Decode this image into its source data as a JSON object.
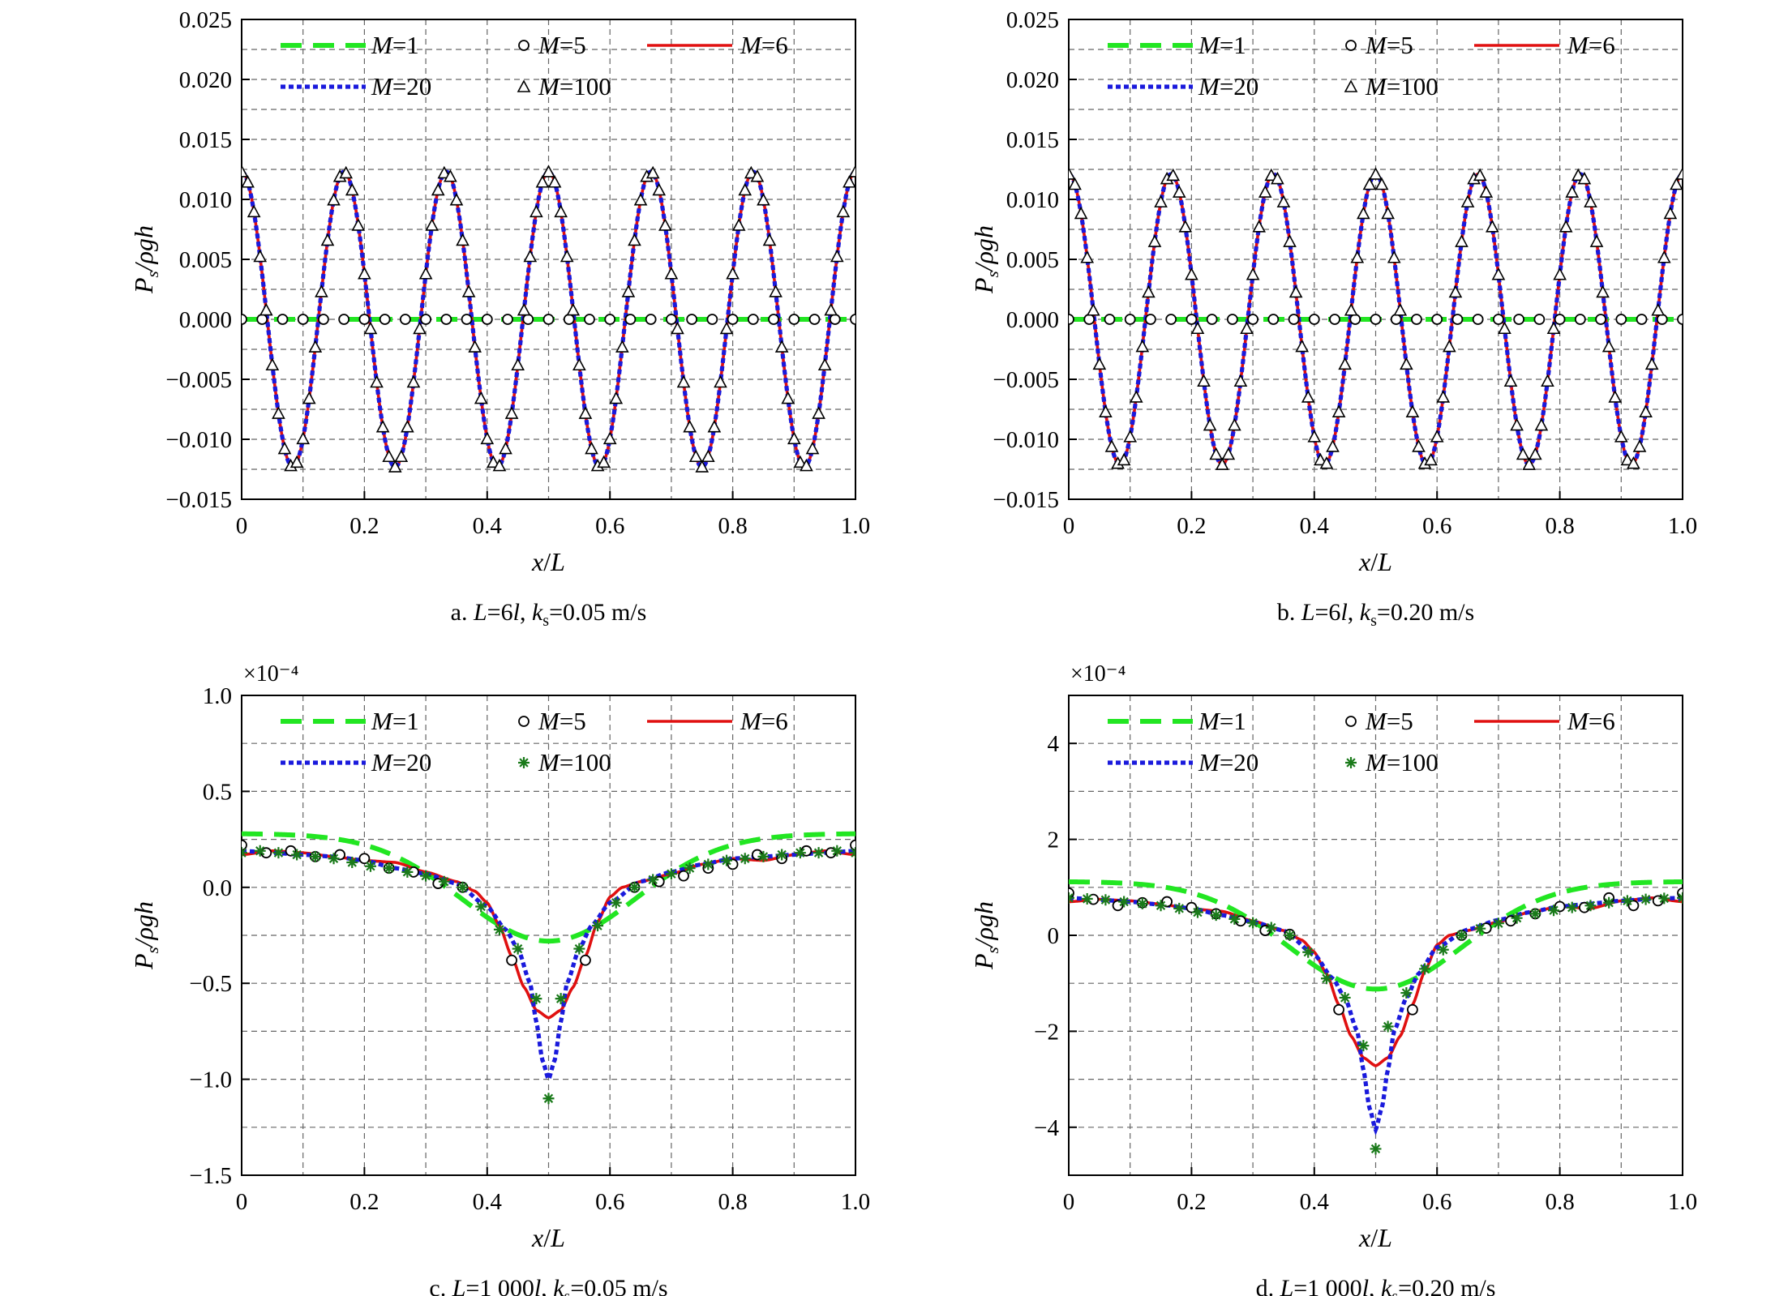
{
  "chart_data": [
    {
      "panel_id": "a",
      "type": "line",
      "caption": {
        "prefix": "a. ",
        "L": "L",
        "eq1": "=6",
        "l": "l",
        "comma": ", ",
        "k": "k",
        "sub": "s",
        "eq2": "=0.05 m/s"
      },
      "xlabel": {
        "a": "x",
        "slash": "/",
        "b": "L"
      },
      "ylabel": {
        "p": "P",
        "sub": "s",
        "rest": "/ρgh"
      },
      "xlim": [
        0,
        1.0
      ],
      "ylim": [
        -0.015,
        0.025
      ],
      "xticks": [
        0,
        0.2,
        0.4,
        0.6,
        0.8,
        1.0
      ],
      "xtick_labels": [
        "0",
        "0.2",
        "0.4",
        "0.6",
        "0.8",
        "1.0"
      ],
      "yticks": [
        -0.015,
        -0.01,
        -0.005,
        0.0,
        0.005,
        0.01,
        0.015,
        0.02,
        0.025
      ],
      "ytick_labels": [
        "−0.015",
        "−0.010",
        "−0.005",
        "0.000",
        "0.005",
        "0.010",
        "0.015",
        "0.020",
        "0.025"
      ],
      "scale_note": "",
      "grid": true,
      "legend": {
        "location": "top",
        "entries": [
          {
            "series": "M=1",
            "letter": "M",
            "rest": "=1"
          },
          {
            "series": "M=5",
            "letter": "M",
            "rest": "=5"
          },
          {
            "series": "M=6",
            "letter": "M",
            "rest": "=6"
          },
          {
            "series": "M=20",
            "letter": "M",
            "rest": "=20"
          },
          {
            "series": "M=100",
            "letter": "M",
            "rest": "=100"
          }
        ]
      },
      "series": [
        {
          "name": "M=1",
          "style": "dashed",
          "color": "#22e622",
          "function": "cos",
          "amplitude": 0.0,
          "offset": 0.0,
          "cycles": 6
        },
        {
          "name": "M=5",
          "style": "circle-markers",
          "color": "#000000",
          "function": "cos",
          "amplitude": 0.0,
          "offset": 0.0,
          "cycles": 6,
          "marker_count": 31
        },
        {
          "name": "M=6",
          "style": "solid",
          "color": "#e01010",
          "function": "cos",
          "amplitude": 0.0123,
          "offset": 0.0,
          "cycles": 6
        },
        {
          "name": "M=20",
          "style": "dotted",
          "color": "#1a1adc",
          "function": "cos",
          "amplitude": 0.0123,
          "offset": 0.0,
          "cycles": 6
        },
        {
          "name": "M=100",
          "style": "triangle-markers",
          "color": "#000000",
          "function": "cos",
          "amplitude": 0.0123,
          "offset": 0.0,
          "cycles": 6,
          "marker_count": 101
        }
      ]
    },
    {
      "panel_id": "b",
      "type": "line",
      "caption": {
        "prefix": "b. ",
        "L": "L",
        "eq1": "=6",
        "l": "l",
        "comma": ", ",
        "k": "k",
        "sub": "s",
        "eq2": "=0.20 m/s"
      },
      "xlabel": {
        "a": "x",
        "slash": "/",
        "b": "L"
      },
      "ylabel": {
        "p": "P",
        "sub": "s",
        "rest": "/ρgh"
      },
      "xlim": [
        0,
        1.0
      ],
      "ylim": [
        -0.015,
        0.025
      ],
      "xticks": [
        0,
        0.2,
        0.4,
        0.6,
        0.8,
        1.0
      ],
      "xtick_labels": [
        "0",
        "0.2",
        "0.4",
        "0.6",
        "0.8",
        "1.0"
      ],
      "yticks": [
        -0.015,
        -0.01,
        -0.005,
        0.0,
        0.005,
        0.01,
        0.015,
        0.02,
        0.025
      ],
      "ytick_labels": [
        "−0.015",
        "−0.010",
        "−0.005",
        "0.000",
        "0.005",
        "0.010",
        "0.015",
        "0.020",
        "0.025"
      ],
      "scale_note": "",
      "grid": true,
      "legend": {
        "location": "top",
        "entries": [
          {
            "series": "M=1",
            "letter": "M",
            "rest": "=1"
          },
          {
            "series": "M=5",
            "letter": "M",
            "rest": "=5"
          },
          {
            "series": "M=6",
            "letter": "M",
            "rest": "=6"
          },
          {
            "series": "M=20",
            "letter": "M",
            "rest": "=20"
          },
          {
            "series": "M=100",
            "letter": "M",
            "rest": "=100"
          }
        ]
      },
      "series": [
        {
          "name": "M=1",
          "style": "dashed",
          "color": "#22e622",
          "function": "cos",
          "amplitude": 0.0,
          "offset": 0.0,
          "cycles": 6
        },
        {
          "name": "M=5",
          "style": "circle-markers",
          "color": "#000000",
          "function": "cos",
          "amplitude": 0.0,
          "offset": 0.0,
          "cycles": 6,
          "marker_count": 31
        },
        {
          "name": "M=6",
          "style": "solid",
          "color": "#e01010",
          "function": "cos",
          "amplitude": 0.0121,
          "offset": 0.0,
          "cycles": 6
        },
        {
          "name": "M=20",
          "style": "dotted",
          "color": "#1a1adc",
          "function": "cos",
          "amplitude": 0.0121,
          "offset": 0.0,
          "cycles": 6
        },
        {
          "name": "M=100",
          "style": "triangle-markers",
          "color": "#000000",
          "function": "cos",
          "amplitude": 0.0121,
          "offset": 0.0,
          "cycles": 6,
          "marker_count": 101
        }
      ]
    },
    {
      "panel_id": "c",
      "type": "line",
      "caption": {
        "prefix": "c. ",
        "L": "L",
        "eq1": "=1 000",
        "l": "l",
        "comma": ", ",
        "k": "k",
        "sub": "s",
        "eq2": "=0.05 m/s"
      },
      "xlabel": {
        "a": "x",
        "slash": "/",
        "b": "L"
      },
      "ylabel": {
        "p": "P",
        "sub": "s",
        "rest": "/ρgh"
      },
      "xlim": [
        0,
        1.0
      ],
      "ylim": [
        -1.5,
        1.0
      ],
      "xticks": [
        0,
        0.2,
        0.4,
        0.6,
        0.8,
        1.0
      ],
      "xtick_labels": [
        "0",
        "0.2",
        "0.4",
        "0.6",
        "0.8",
        "1.0"
      ],
      "yticks": [
        -1.5,
        -1.0,
        -0.5,
        0.0,
        0.5,
        1.0
      ],
      "ytick_labels": [
        "−1.5",
        "−1.0",
        "−0.5",
        "0.0",
        "0.5",
        "1.0"
      ],
      "scale_note": "×10⁻⁴",
      "grid": true,
      "legend": {
        "location": "top",
        "entries": [
          {
            "series": "M=1",
            "letter": "M",
            "rest": "=1"
          },
          {
            "series": "M=5",
            "letter": "M",
            "rest": "=5"
          },
          {
            "series": "M=6",
            "letter": "M",
            "rest": "=6"
          },
          {
            "series": "M=20",
            "letter": "M",
            "rest": "=20"
          },
          {
            "series": "M=100",
            "letter": "M",
            "rest": "=100"
          }
        ]
      },
      "series": [
        {
          "name": "M=1",
          "style": "dashed",
          "color": "#22e622",
          "function": "dip",
          "edge": 0.28,
          "center": -0.28,
          "width": 0.2
        },
        {
          "name": "M=5",
          "style": "circle-markers",
          "color": "#000000",
          "function": "points",
          "x": [
            0,
            0.04,
            0.08,
            0.12,
            0.16,
            0.2,
            0.24,
            0.28,
            0.32,
            0.36,
            0.44,
            0.56,
            0.64,
            0.68,
            0.72,
            0.76,
            0.8,
            0.84,
            0.88,
            0.92,
            0.96,
            1.0
          ],
          "y": [
            0.22,
            0.18,
            0.19,
            0.16,
            0.17,
            0.15,
            0.1,
            0.08,
            0.02,
            0.0,
            -0.38,
            -0.38,
            0.0,
            0.03,
            0.06,
            0.1,
            0.12,
            0.17,
            0.15,
            0.19,
            0.18,
            0.22
          ]
        },
        {
          "name": "M=6",
          "style": "solid",
          "color": "#e01010",
          "function": "profile",
          "x": [
            0,
            0.05,
            0.1,
            0.15,
            0.2,
            0.25,
            0.3,
            0.35,
            0.38,
            0.4,
            0.42,
            0.44,
            0.46,
            0.48,
            0.5,
            0.52,
            0.54,
            0.56,
            0.58,
            0.6,
            0.62,
            0.65,
            0.7,
            0.75,
            0.8,
            0.85,
            0.9,
            0.95,
            1.0
          ],
          "y": [
            0.17,
            0.19,
            0.18,
            0.16,
            0.14,
            0.13,
            0.08,
            0.03,
            -0.02,
            -0.08,
            -0.2,
            -0.36,
            -0.52,
            -0.64,
            -0.68,
            -0.64,
            -0.52,
            -0.36,
            -0.18,
            -0.05,
            0.0,
            0.03,
            0.07,
            0.12,
            0.15,
            0.14,
            0.17,
            0.19,
            0.17
          ]
        },
        {
          "name": "M=20",
          "style": "dotted",
          "color": "#1a1adc",
          "function": "profile",
          "x": [
            0,
            0.05,
            0.1,
            0.15,
            0.2,
            0.25,
            0.3,
            0.35,
            0.4,
            0.43,
            0.45,
            0.47,
            0.48,
            0.49,
            0.5,
            0.51,
            0.52,
            0.53,
            0.55,
            0.57,
            0.6,
            0.65,
            0.7,
            0.75,
            0.8,
            0.85,
            0.9,
            0.95,
            1.0
          ],
          "y": [
            0.19,
            0.18,
            0.17,
            0.16,
            0.14,
            0.1,
            0.07,
            0.02,
            -0.1,
            -0.22,
            -0.32,
            -0.5,
            -0.7,
            -0.9,
            -1.0,
            -0.9,
            -0.7,
            -0.5,
            -0.32,
            -0.2,
            -0.08,
            0.03,
            0.08,
            0.12,
            0.15,
            0.16,
            0.17,
            0.18,
            0.19
          ]
        },
        {
          "name": "M=100",
          "style": "star-markers",
          "color": "#1a7a1a",
          "function": "points",
          "x": [
            0,
            0.03,
            0.06,
            0.09,
            0.12,
            0.15,
            0.18,
            0.21,
            0.24,
            0.27,
            0.3,
            0.33,
            0.36,
            0.39,
            0.42,
            0.45,
            0.48,
            0.5,
            0.52,
            0.55,
            0.58,
            0.61,
            0.64,
            0.67,
            0.7,
            0.73,
            0.76,
            0.79,
            0.82,
            0.85,
            0.88,
            0.91,
            0.94,
            0.97,
            1.0
          ],
          "y": [
            0.18,
            0.19,
            0.18,
            0.17,
            0.16,
            0.15,
            0.13,
            0.11,
            0.1,
            0.08,
            0.06,
            0.03,
            0.0,
            -0.1,
            -0.22,
            -0.32,
            -0.58,
            -1.1,
            -0.58,
            -0.32,
            -0.2,
            -0.08,
            0.0,
            0.04,
            0.07,
            0.1,
            0.12,
            0.14,
            0.15,
            0.16,
            0.17,
            0.18,
            0.18,
            0.19,
            0.18
          ]
        }
      ]
    },
    {
      "panel_id": "d",
      "type": "line",
      "caption": {
        "prefix": "d. ",
        "L": "L",
        "eq1": "=1 000",
        "l": "l",
        "comma": ", ",
        "k": "k",
        "sub": "s",
        "eq2": "=0.20 m/s"
      },
      "xlabel": {
        "a": "x",
        "slash": "/",
        "b": "L"
      },
      "ylabel": {
        "p": "P",
        "sub": "s",
        "rest": "/ρgh"
      },
      "xlim": [
        0,
        1.0
      ],
      "ylim": [
        -5,
        5
      ],
      "xticks": [
        0,
        0.2,
        0.4,
        0.6,
        0.8,
        1.0
      ],
      "xtick_labels": [
        "0",
        "0.2",
        "0.4",
        "0.6",
        "0.8",
        "1.0"
      ],
      "yticks": [
        -4,
        -2,
        0,
        2,
        4
      ],
      "ytick_labels": [
        "−4",
        "−2",
        "0",
        "2",
        "4"
      ],
      "scale_note": "×10⁻⁴",
      "grid": true,
      "legend": {
        "location": "top",
        "entries": [
          {
            "series": "M=1",
            "letter": "M",
            "rest": "=1"
          },
          {
            "series": "M=5",
            "letter": "M",
            "rest": "=5"
          },
          {
            "series": "M=6",
            "letter": "M",
            "rest": "=6"
          },
          {
            "series": "M=20",
            "letter": "M",
            "rest": "=20"
          },
          {
            "series": "M=100",
            "letter": "M",
            "rest": "=100"
          }
        ]
      },
      "series": [
        {
          "name": "M=1",
          "style": "dashed",
          "color": "#22e622",
          "function": "dip",
          "edge": 1.12,
          "center": -1.12,
          "width": 0.2
        },
        {
          "name": "M=5",
          "style": "circle-markers",
          "color": "#000000",
          "function": "points",
          "x": [
            0,
            0.04,
            0.08,
            0.12,
            0.16,
            0.2,
            0.24,
            0.28,
            0.32,
            0.36,
            0.44,
            0.56,
            0.64,
            0.68,
            0.72,
            0.76,
            0.8,
            0.84,
            0.88,
            0.92,
            0.96,
            1.0
          ],
          "y": [
            0.88,
            0.75,
            0.62,
            0.68,
            0.7,
            0.58,
            0.45,
            0.3,
            0.1,
            0.02,
            -1.55,
            -1.55,
            0.0,
            0.15,
            0.3,
            0.45,
            0.6,
            0.58,
            0.78,
            0.62,
            0.72,
            0.88
          ]
        },
        {
          "name": "M=6",
          "style": "solid",
          "color": "#e01010",
          "function": "profile",
          "x": [
            0,
            0.05,
            0.1,
            0.15,
            0.2,
            0.25,
            0.3,
            0.35,
            0.38,
            0.4,
            0.42,
            0.44,
            0.46,
            0.48,
            0.5,
            0.52,
            0.54,
            0.56,
            0.58,
            0.6,
            0.62,
            0.65,
            0.7,
            0.75,
            0.8,
            0.85,
            0.9,
            0.95,
            1.0
          ],
          "y": [
            0.7,
            0.75,
            0.72,
            0.65,
            0.55,
            0.5,
            0.3,
            0.1,
            -0.1,
            -0.35,
            -0.8,
            -1.45,
            -2.1,
            -2.55,
            -2.72,
            -2.55,
            -2.1,
            -1.45,
            -0.75,
            -0.2,
            0.0,
            0.1,
            0.28,
            0.48,
            0.6,
            0.56,
            0.72,
            0.78,
            0.7
          ]
        },
        {
          "name": "M=20",
          "style": "dotted",
          "color": "#1a1adc",
          "function": "profile",
          "x": [
            0,
            0.05,
            0.1,
            0.15,
            0.2,
            0.25,
            0.3,
            0.35,
            0.4,
            0.43,
            0.45,
            0.47,
            0.48,
            0.49,
            0.5,
            0.51,
            0.52,
            0.53,
            0.55,
            0.57,
            0.6,
            0.65,
            0.7,
            0.75,
            0.8,
            0.85,
            0.9,
            0.95,
            1.0
          ],
          "y": [
            0.78,
            0.74,
            0.7,
            0.64,
            0.56,
            0.42,
            0.28,
            0.1,
            -0.4,
            -0.9,
            -1.3,
            -2.0,
            -2.8,
            -3.6,
            -4.05,
            -3.6,
            -2.8,
            -2.0,
            -1.3,
            -0.8,
            -0.25,
            0.12,
            0.32,
            0.48,
            0.6,
            0.66,
            0.72,
            0.76,
            0.78
          ]
        },
        {
          "name": "M=100",
          "style": "star-markers",
          "color": "#1a7a1a",
          "function": "points",
          "x": [
            0,
            0.03,
            0.06,
            0.09,
            0.12,
            0.15,
            0.18,
            0.21,
            0.24,
            0.27,
            0.3,
            0.33,
            0.36,
            0.39,
            0.42,
            0.45,
            0.48,
            0.5,
            0.52,
            0.55,
            0.58,
            0.61,
            0.64,
            0.67,
            0.7,
            0.73,
            0.76,
            0.79,
            0.82,
            0.85,
            0.88,
            0.91,
            0.94,
            0.97,
            1.0
          ],
          "y": [
            0.78,
            0.76,
            0.74,
            0.7,
            0.66,
            0.62,
            0.56,
            0.48,
            0.42,
            0.34,
            0.26,
            0.16,
            0.0,
            -0.35,
            -0.9,
            -1.3,
            -2.3,
            -4.45,
            -1.9,
            -1.2,
            -0.7,
            -0.3,
            0.0,
            0.14,
            0.25,
            0.36,
            0.45,
            0.52,
            0.58,
            0.62,
            0.68,
            0.72,
            0.75,
            0.77,
            0.78
          ]
        }
      ]
    }
  ]
}
